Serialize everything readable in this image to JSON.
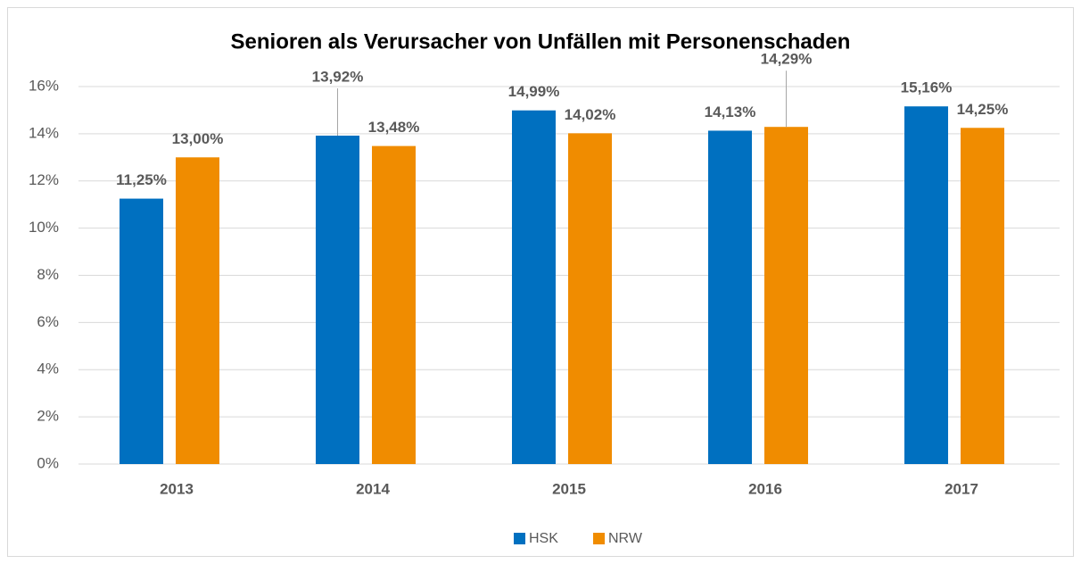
{
  "chart_data": {
    "type": "bar",
    "title": "Senioren als Verursacher von Unfällen mit Personenschaden",
    "categories": [
      "2013",
      "2014",
      "2015",
      "2016",
      "2017"
    ],
    "series": [
      {
        "name": "HSK",
        "color": "#0070c0",
        "values": [
          11.25,
          13.92,
          14.99,
          14.13,
          15.16
        ],
        "value_labels": [
          "11,25%",
          "13,92%",
          "14,99%",
          "14,13%",
          "15,16%"
        ]
      },
      {
        "name": "NRW",
        "color": "#f08c00",
        "values": [
          13.0,
          13.48,
          14.02,
          14.29,
          14.25
        ],
        "value_labels": [
          "13,00%",
          "13,48%",
          "14,02%",
          "14,29%",
          "14,25%"
        ]
      }
    ],
    "ylim": [
      0,
      16
    ],
    "yticks": [
      {
        "value": 0,
        "label": "0%"
      },
      {
        "value": 2,
        "label": "2%"
      },
      {
        "value": 4,
        "label": "4%"
      },
      {
        "value": 6,
        "label": "6%"
      },
      {
        "value": 8,
        "label": "8%"
      },
      {
        "value": 10,
        "label": "10%"
      },
      {
        "value": 12,
        "label": "12%"
      },
      {
        "value": 14,
        "label": "14%"
      },
      {
        "value": 16,
        "label": "16%"
      }
    ],
    "grid": true,
    "legend": "bottom"
  }
}
